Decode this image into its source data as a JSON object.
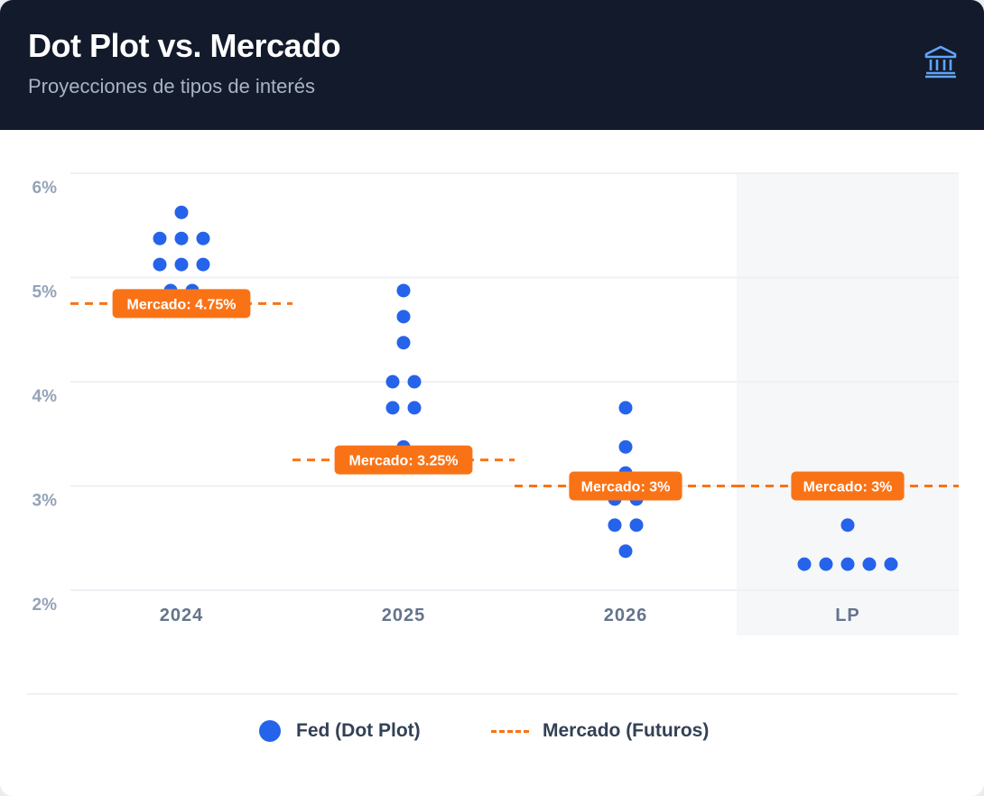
{
  "header": {
    "title": "Dot Plot vs. Mercado",
    "subtitle": "Proyecciones de tipos de interés",
    "icon": "bank-icon"
  },
  "colors": {
    "fed": "#2563eb",
    "market": "#f97316",
    "header_bg": "#121a2b",
    "lp_band": "#f6f7f9",
    "axis_text": "#94a3b8",
    "category_text": "#64748b"
  },
  "legend": {
    "fed_label": "Fed (Dot Plot)",
    "market_label": "Mercado (Futuros)"
  },
  "chart_data": {
    "type": "scatter",
    "title": "Dot Plot vs. Mercado",
    "subtitle": "Proyecciones de tipos de interés",
    "categories": [
      "2024",
      "2025",
      "2026",
      "LP"
    ],
    "y_ticks": [
      "6%",
      "5%",
      "4%",
      "3%",
      "2%"
    ],
    "ylim": [
      2.0,
      6.0
    ],
    "grid": true,
    "highlighted_category": "LP",
    "series": [
      {
        "name": "Fed (Dot Plot)",
        "type": "dots",
        "dots": [
          {
            "category": "2024",
            "values": [
              5.625,
              5.375,
              5.375,
              5.375,
              5.125,
              5.125,
              5.125,
              4.875,
              4.875
            ]
          },
          {
            "category": "2025",
            "values": [
              4.875,
              4.625,
              4.375,
              4.0,
              4.0,
              3.75,
              3.75,
              3.375
            ]
          },
          {
            "category": "2026",
            "values": [
              3.75,
              3.375,
              3.125,
              2.875,
              2.875,
              2.625,
              2.625,
              2.375
            ]
          },
          {
            "category": "LP",
            "values": [
              2.625,
              2.25,
              2.25,
              2.25,
              2.25,
              2.25
            ]
          }
        ]
      },
      {
        "name": "Mercado (Futuros)",
        "type": "dashed-step",
        "segments": [
          {
            "category": "2024",
            "value": 4.75,
            "label": "Mercado: 4.75%"
          },
          {
            "category": "2025",
            "value": 3.25,
            "label": "Mercado: 3.25%"
          },
          {
            "category": "2026",
            "value": 3.0,
            "label": "Mercado: 3%"
          },
          {
            "category": "LP",
            "value": 3.0,
            "label": "Mercado: 3%"
          }
        ]
      }
    ]
  }
}
